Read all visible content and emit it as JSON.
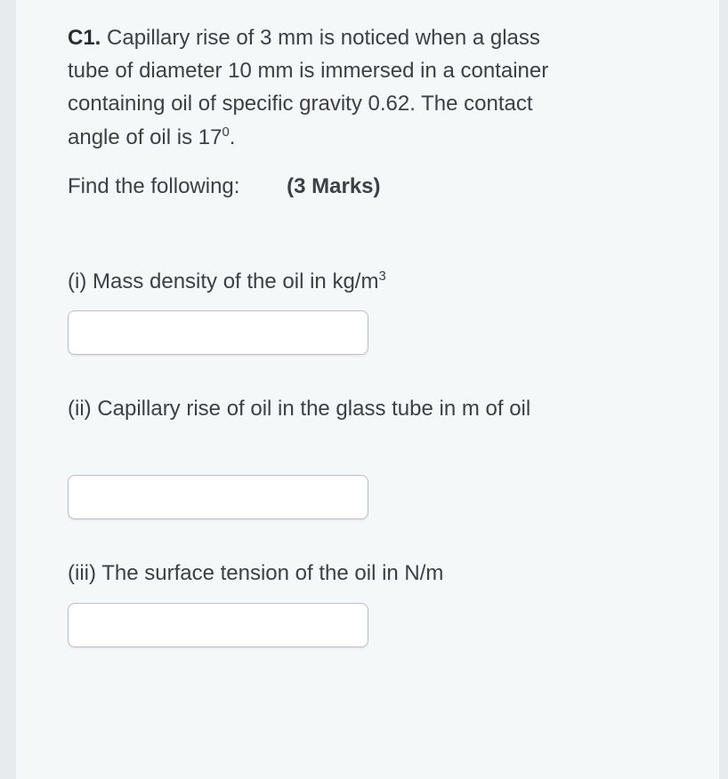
{
  "problem": {
    "label": "C1.",
    "text_line1": " Capillary rise of 3 mm is noticed when a glass",
    "text_line2": "tube of diameter 10 mm is immersed in a container",
    "text_line3": "containing oil of specific gravity 0.62. The contact",
    "text_line4_a": "angle of oil is 17",
    "text_line4_sup": "0",
    "text_line4_b": "."
  },
  "find": {
    "label": "Find the following:",
    "marks": "(3 Marks)"
  },
  "parts": {
    "p1_a": "(i) Mass density of the oil in kg/m",
    "p1_sup": "3",
    "p2": "(ii) Capillary rise of oil in the glass tube in m of oil",
    "p3": "(iii) The surface tension of the oil in N/m"
  },
  "inputs": {
    "v1": "",
    "v2": "",
    "v3": ""
  },
  "colors": {
    "page_bg": "#e8ebed",
    "card_bg": "#f5f8f9",
    "text": "#3b4044",
    "bold_text": "#2a2e31",
    "input_bg": "#ffffff",
    "input_border": "#b9bfc4"
  },
  "fontsize": {
    "body": 24
  }
}
